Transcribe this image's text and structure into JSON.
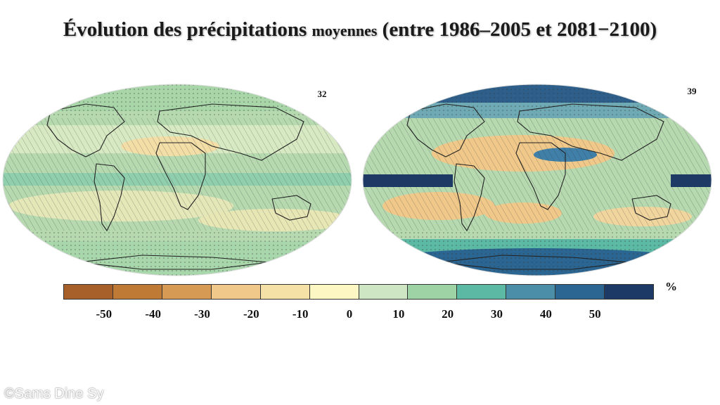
{
  "title": {
    "part1": "Évolution des précipitations",
    "part2": "moyennes",
    "part3": "(entre 1986–2005 et 2081−2100)"
  },
  "maps": [
    {
      "label": "32",
      "pattern": "moderate",
      "base_color": "#b6d9b0"
    },
    {
      "label": "39",
      "pattern": "strong",
      "base_color": "#b6d9b0"
    }
  ],
  "legend": {
    "unit": "%",
    "ticks": [
      "-50",
      "-40",
      "-30",
      "-20",
      "-10",
      "0",
      "10",
      "20",
      "30",
      "40",
      "50"
    ],
    "colors": [
      "#a8602a",
      "#bf7a35",
      "#d69a55",
      "#f0c98a",
      "#f5e1a5",
      "#fdf7c3",
      "#cfe6c4",
      "#9ed3a6",
      "#5cb9a4",
      "#4a8ea8",
      "#2b6591",
      "#1d3a67"
    ]
  },
  "watermark": "©Sams Dine Sy"
}
